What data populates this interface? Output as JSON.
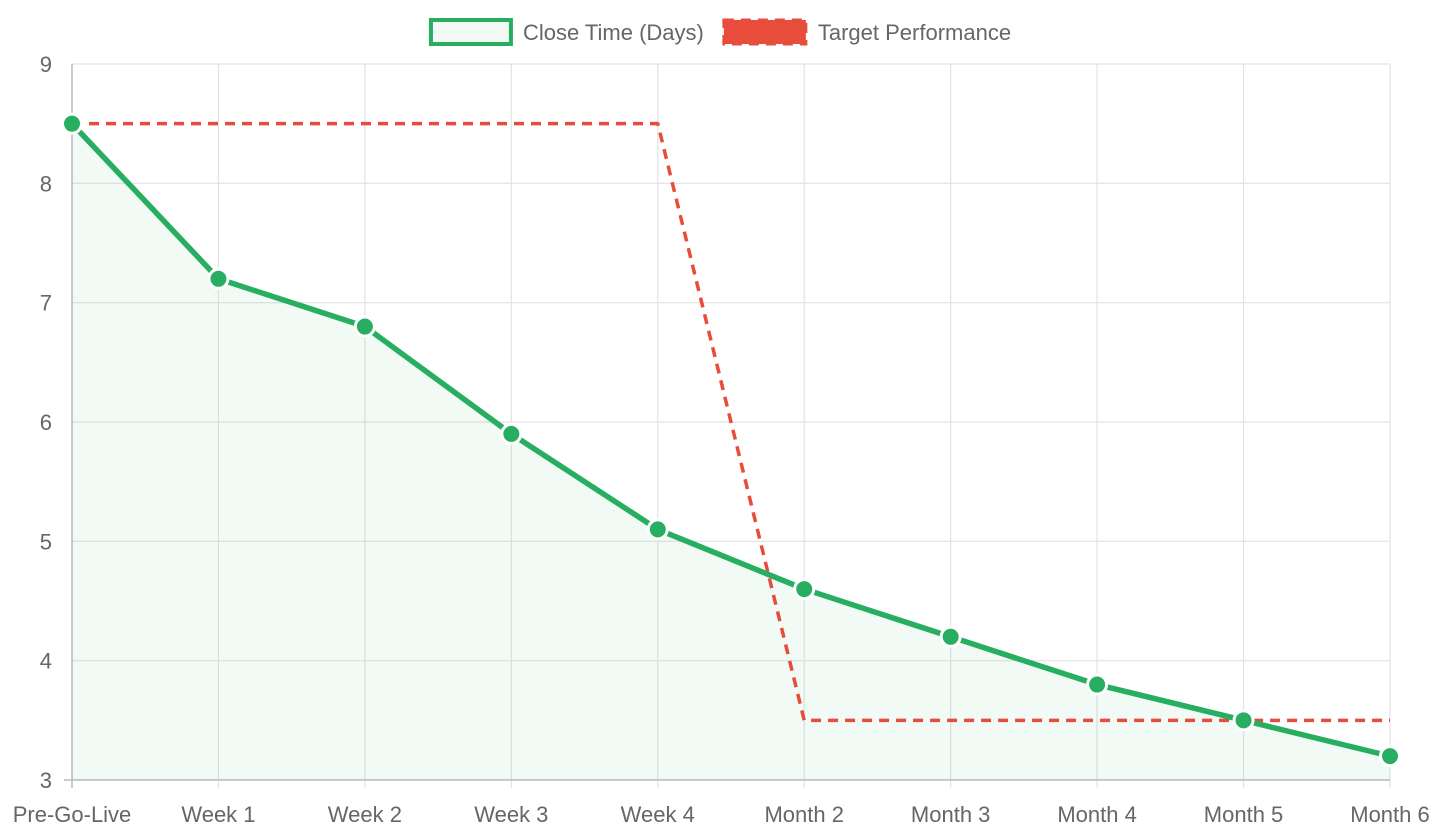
{
  "chart_data": {
    "type": "line",
    "categories": [
      "Pre-Go-Live",
      "Week 1",
      "Week 2",
      "Week 3",
      "Week 4",
      "Month 2",
      "Month 3",
      "Month 4",
      "Month 5",
      "Month 6"
    ],
    "series": [
      {
        "name": "Close Time (Days)",
        "values": [
          8.5,
          7.2,
          6.8,
          5.9,
          5.1,
          4.6,
          4.2,
          3.8,
          3.5,
          3.2
        ],
        "color": "#27ae60",
        "fill": "rgba(39,174,96,0.06)",
        "style": "solid",
        "markers": true,
        "area": true
      },
      {
        "name": "Target Performance",
        "values": [
          8.5,
          8.5,
          8.5,
          8.5,
          8.5,
          3.5,
          3.5,
          3.5,
          3.5,
          3.5
        ],
        "color": "#e74c3c",
        "style": "dashed",
        "markers": false,
        "area": false
      }
    ],
    "ylim": [
      3,
      9
    ],
    "yticks": [
      "3",
      "4",
      "5",
      "6",
      "7",
      "8",
      "9"
    ],
    "grid": true,
    "legend_position": "top-center",
    "title": "",
    "xlabel": "",
    "ylabel": ""
  }
}
